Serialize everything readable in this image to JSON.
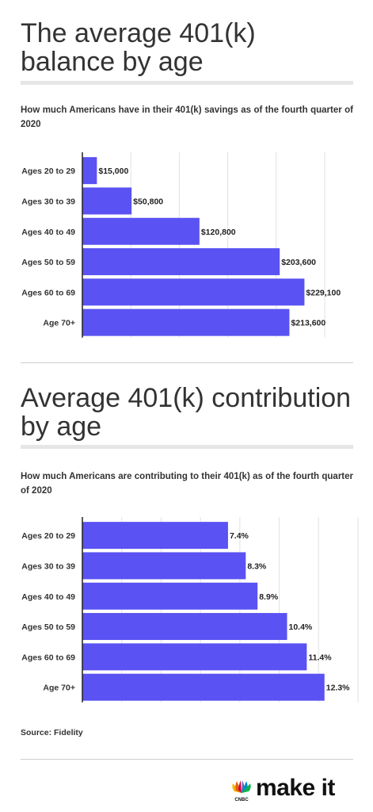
{
  "chart_data": [
    {
      "type": "bar",
      "orientation": "horizontal",
      "title": "The average 401(k) balance by age",
      "subtitle": "How much Americans have in their 401(k) savings as of the fourth quarter of 2020",
      "categories": [
        "Ages 20 to 29",
        "Ages 30 to 39",
        "Ages 40 to 49",
        "Ages 50 to 59",
        "Ages 60 to 69",
        "Age 70+"
      ],
      "values": [
        15000,
        50800,
        120800,
        203600,
        229100,
        213600
      ],
      "value_labels": [
        "$15,000",
        "$50,800",
        "$120,800",
        "$203,600",
        "$229,100",
        "$213,600"
      ],
      "xlim": [
        0,
        250000
      ],
      "grid": true,
      "bar_color": "#5a52f2"
    },
    {
      "type": "bar",
      "orientation": "horizontal",
      "title": "Average 401(k) contribution by age",
      "subtitle": "How much Americans are contributing to their 401(k) as of the fourth quarter of 2020",
      "categories": [
        "Ages 20 to 29",
        "Ages 30 to 39",
        "Ages 40 to 49",
        "Ages 50 to 59",
        "Ages 60 to 69",
        "Age 70+"
      ],
      "values": [
        7.4,
        8.3,
        8.9,
        10.4,
        11.4,
        12.3
      ],
      "value_labels": [
        "7.4%",
        "8.3%",
        "8.9%",
        "10.4%",
        "11.4%",
        "12.3%"
      ],
      "xlim": [
        0,
        14
      ],
      "grid": true,
      "bar_color": "#5a52f2"
    }
  ],
  "source": "Source: Fidelity",
  "logo": {
    "wordmark": "make it",
    "brand_icon": "cnbc-peacock-icon",
    "brand_small": "CNBC"
  },
  "colors": {
    "bar": "#5a52f2",
    "grid": "#e2e2e2",
    "axis": "#222222",
    "rule": "#e6e6e6"
  }
}
